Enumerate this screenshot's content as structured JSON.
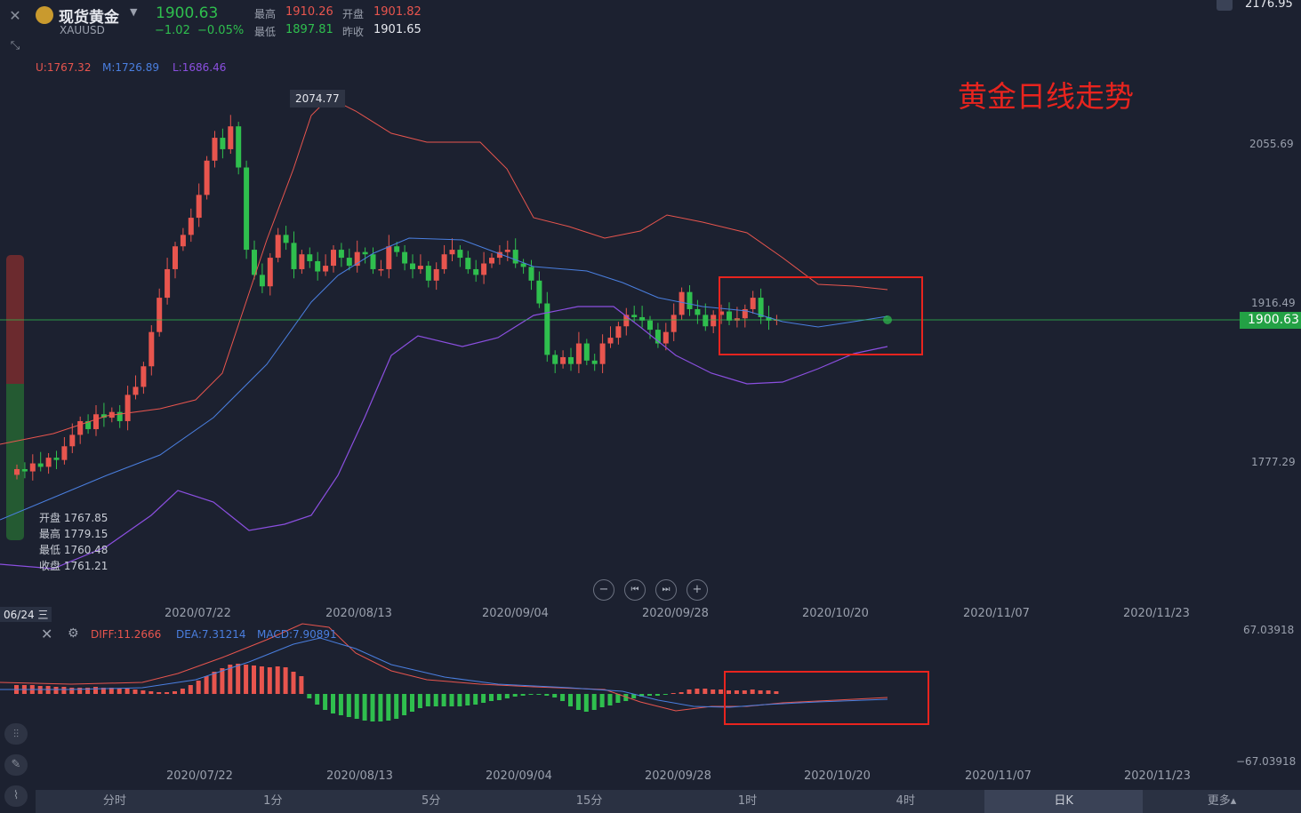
{
  "header": {
    "name": "现货黄金",
    "symbol": "XAUUSD",
    "price": "1900.63",
    "change": "−1.02",
    "change_pct": "−0.05%",
    "high_label": "最高",
    "high": "1910.26",
    "open_label": "开盘",
    "open": "1901.82",
    "low_label": "最低",
    "low": "1897.81",
    "prev_label": "昨收",
    "prev": "1901.65",
    "top_right_price": "2176.95"
  },
  "bands": {
    "u": "U:1767.32",
    "m": "M:1726.89",
    "l": "L:1686.46"
  },
  "annotation_title": "黄金日线走势",
  "peak_label": "2074.77",
  "current_price_tag": "1900.63",
  "price_axis": [
    "2055.69",
    "1916.49",
    "1777.29"
  ],
  "ohlc_tooltip": {
    "open": "开盘 1767.85",
    "high": "最高 1779.15",
    "low": "最低 1760.48",
    "close": "收盘 1761.21"
  },
  "cursor_date": "06/24 三",
  "dates": [
    "2020/07/22",
    "2020/08/13",
    "2020/09/04",
    "2020/09/28",
    "2020/10/20",
    "2020/11/07",
    "2020/11/23"
  ],
  "macd": {
    "diff": "DIFF:11.2666",
    "dea": "DEA:7.31214",
    "macd": "MACD:7.90891",
    "axis_top": "67.03918",
    "axis_bottom": "−67.03918"
  },
  "periods": [
    "分时",
    "1分",
    "5分",
    "15分",
    "1时",
    "4时",
    "日K",
    "更多▴"
  ],
  "active_period": "日K",
  "colors": {
    "up": "#e8554e",
    "down": "#2fbf4e",
    "mid": "#4a7fe0",
    "low": "#8b4fe0",
    "bg": "#1c2130"
  }
}
